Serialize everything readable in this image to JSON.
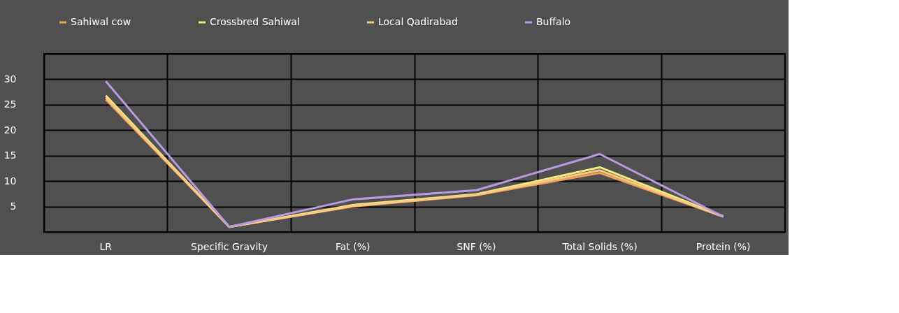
{
  "chart_data": {
    "type": "line",
    "categories": [
      "LR",
      "Specific Gravity",
      "Fat (%)",
      "SNF (%)",
      "Total Solids (%)",
      "Protein (%)"
    ],
    "series": [
      {
        "name": "Sahiwal cow",
        "color": "#f0a050",
        "values": [
          26,
          1.0,
          5.0,
          7.2,
          11.6,
          3.0
        ]
      },
      {
        "name": "Crossbred Sahiwal",
        "color": "#f5ea7a",
        "values": [
          26.8,
          1.0,
          5.3,
          7.4,
          12.7,
          3.1
        ]
      },
      {
        "name": "Local Qadirabad",
        "color": "#f7c98a",
        "values": [
          26.4,
          1.0,
          5.1,
          7.3,
          12.1,
          3.0
        ]
      },
      {
        "name": "Buffalo",
        "color": "#b89ae0",
        "values": [
          29.6,
          1.0,
          6.4,
          8.2,
          15.3,
          3.0
        ]
      }
    ],
    "ylim": [
      0,
      35
    ],
    "yticks": [
      {
        "value": 0,
        "label": null
      },
      5,
      10,
      15,
      20,
      25,
      30,
      {
        "value": 35,
        "label": null
      }
    ],
    "grid": true,
    "legend": "top",
    "marker": "none",
    "line_style": "solid"
  }
}
